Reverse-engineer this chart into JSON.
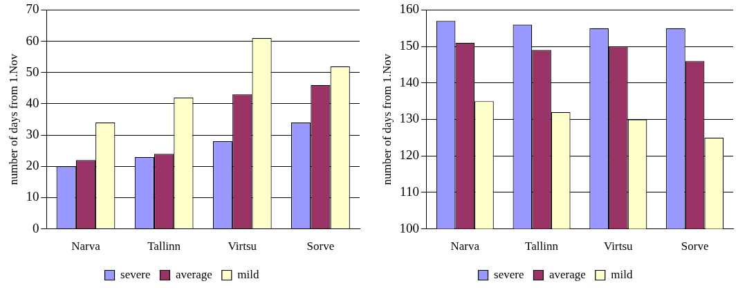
{
  "chart_data": [
    {
      "type": "bar",
      "ylabel": "number of days from 1.Nov",
      "categories": [
        "Narva",
        "Tallinn",
        "Virtsu",
        "Sorve"
      ],
      "series": [
        {
          "name": "severe",
          "color": "#9999ff",
          "values": [
            20,
            23,
            28,
            34
          ]
        },
        {
          "name": "average",
          "color": "#993366",
          "values": [
            22,
            24,
            43,
            46
          ]
        },
        {
          "name": "mild",
          "color": "#ffffcc",
          "values": [
            34,
            42,
            61,
            52
          ]
        }
      ],
      "ylim": [
        0,
        70
      ],
      "yticks": [
        0,
        10,
        20,
        30,
        40,
        50,
        60,
        70
      ],
      "grid": "y",
      "legend": "bottom"
    },
    {
      "type": "bar",
      "ylabel": "number of days from 1.Nov",
      "categories": [
        "Narva",
        "Tallinn",
        "Virtsu",
        "Sorve"
      ],
      "series": [
        {
          "name": "severe",
          "color": "#9999ff",
          "values": [
            157,
            156,
            155,
            155
          ]
        },
        {
          "name": "average",
          "color": "#993366",
          "values": [
            151,
            149,
            150,
            146
          ]
        },
        {
          "name": "mild",
          "color": "#ffffcc",
          "values": [
            135,
            132,
            130,
            125
          ]
        }
      ],
      "ylim": [
        100,
        160
      ],
      "yticks": [
        100,
        110,
        120,
        130,
        140,
        150,
        160
      ],
      "grid": "y",
      "legend": "bottom"
    }
  ]
}
